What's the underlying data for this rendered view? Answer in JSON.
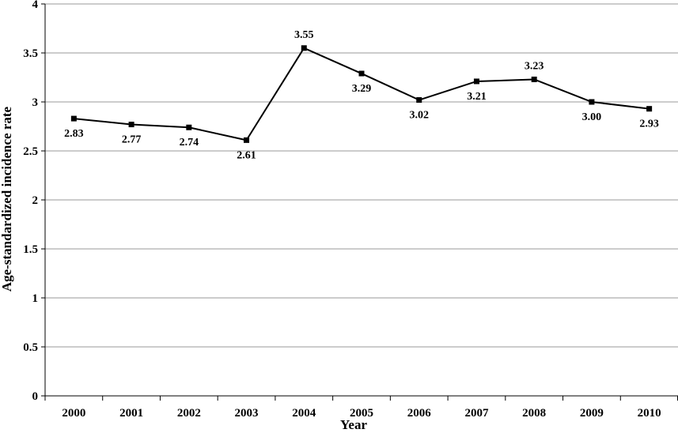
{
  "chart_data": {
    "type": "line",
    "title": "",
    "xlabel": "Year",
    "ylabel": "Age-standardized incidence rate",
    "categories": [
      "2000",
      "2001",
      "2002",
      "2003",
      "2004",
      "2005",
      "2006",
      "2007",
      "2008",
      "2009",
      "2010"
    ],
    "series": [
      {
        "values": [
          2.83,
          2.77,
          2.74,
          2.61,
          3.55,
          3.29,
          3.02,
          3.21,
          3.23,
          3.0,
          2.93
        ],
        "data_labels": [
          "2.83",
          "2.77",
          "2.74",
          "2.61",
          "3.55",
          "3.29",
          "3.02",
          "3.21",
          "3.23",
          "3.00",
          "2.93"
        ],
        "color": "#000000",
        "marker": "square"
      }
    ],
    "ylim": [
      0,
      4
    ],
    "yticks": [
      0,
      0.5,
      1,
      1.5,
      2,
      2.5,
      3,
      3.5,
      4
    ],
    "ytick_labels": [
      "0",
      "0.5",
      "1",
      "1.5",
      "2",
      "2.5",
      "3",
      "3.5",
      "4"
    ],
    "grid": true,
    "grid_axis": "y",
    "grid_color": "#999999",
    "legend": "none"
  }
}
